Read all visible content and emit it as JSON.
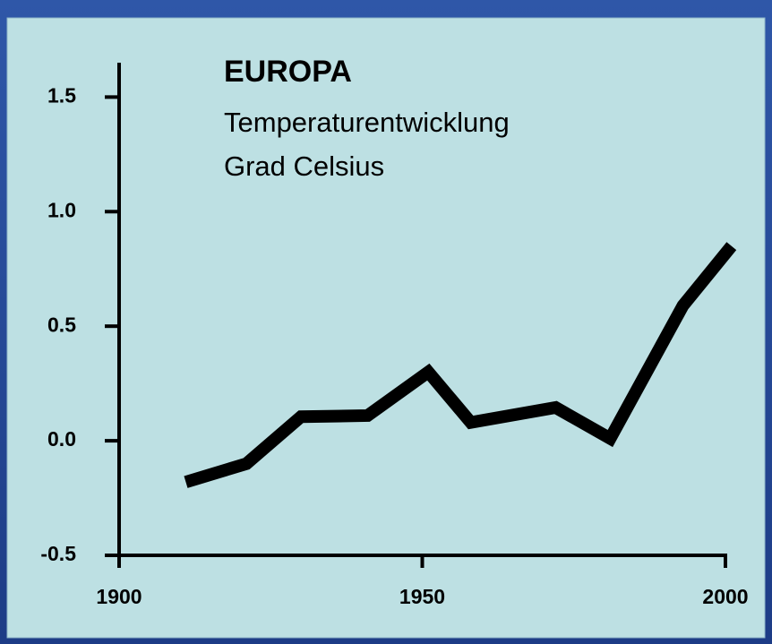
{
  "chart_data": {
    "type": "line",
    "title": "EUROPA",
    "subtitle": "Temperaturentwicklung",
    "y_label": "Grad Celsius",
    "x": [
      1911,
      1921,
      1930,
      1941,
      1951,
      1958,
      1972,
      1981,
      1993,
      2001
    ],
    "series": [
      {
        "name": null,
        "color": "#000000",
        "values": [
          -0.18,
          -0.1,
          0.105,
          0.11,
          0.3,
          0.08,
          0.145,
          0.01,
          0.59,
          0.85
        ]
      }
    ],
    "xlim": [
      1900,
      2000
    ],
    "xticks": [
      1900,
      1950,
      2000
    ],
    "ylim": [
      -0.5,
      1.65
    ],
    "yticks": [
      {
        "value": 1.5,
        "label": "1.5"
      },
      {
        "value": 1.0,
        "label": "1.0"
      },
      0.5,
      {
        "value": 0.0,
        "label": "0.0"
      },
      -0.5
    ],
    "grid": false
  }
}
